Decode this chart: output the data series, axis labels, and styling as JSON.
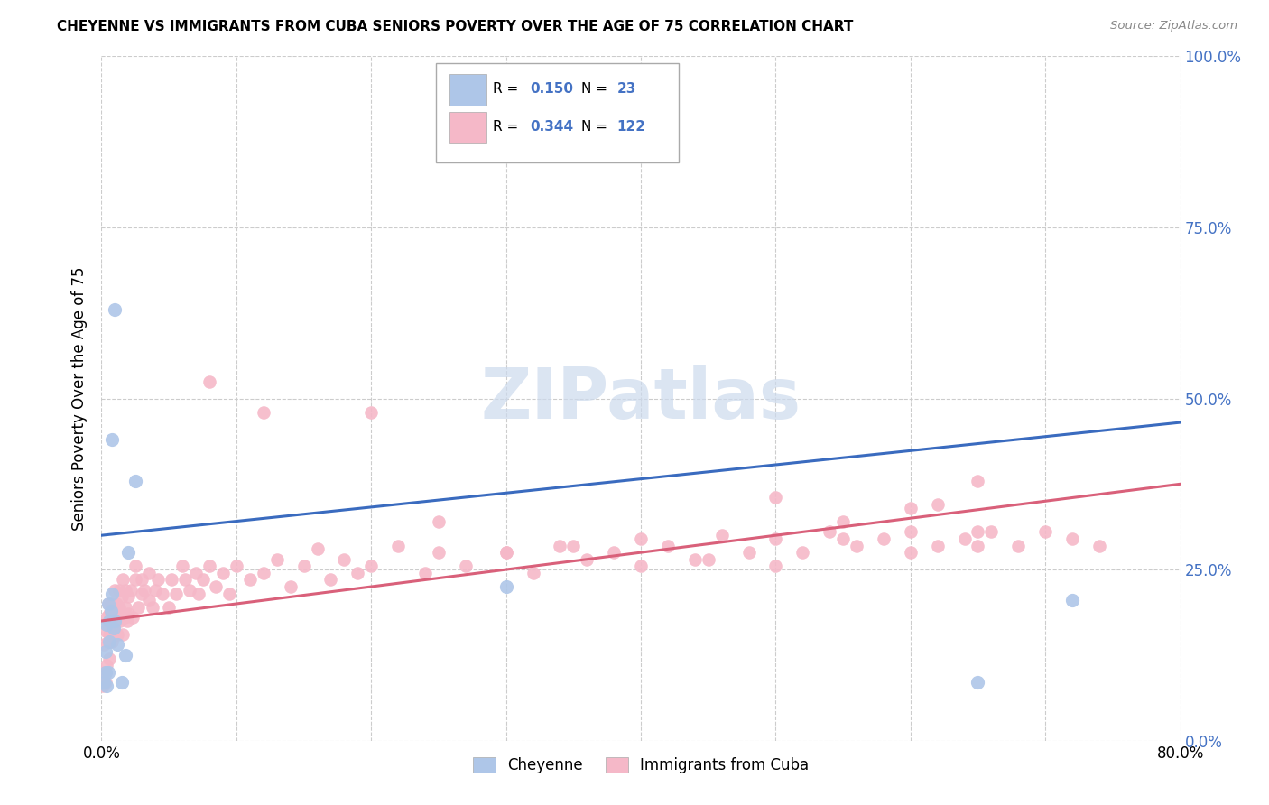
{
  "title": "CHEYENNE VS IMMIGRANTS FROM CUBA SENIORS POVERTY OVER THE AGE OF 75 CORRELATION CHART",
  "source": "Source: ZipAtlas.com",
  "ylabel": "Seniors Poverty Over the Age of 75",
  "cheyenne_R": "0.150",
  "cheyenne_N": "23",
  "cuba_R": "0.344",
  "cuba_N": "122",
  "cheyenne_color": "#aec6e8",
  "cuba_color": "#f5b8c8",
  "line_cheyenne_color": "#3a6bbf",
  "line_cuba_color": "#d9607a",
  "watermark_color": "#ccdaed",
  "cheyenne_x": [
    0.002,
    0.003,
    0.003,
    0.004,
    0.004,
    0.005,
    0.005,
    0.006,
    0.006,
    0.007,
    0.008,
    0.009,
    0.01,
    0.012,
    0.015,
    0.018,
    0.02,
    0.025,
    0.008,
    0.01,
    0.3,
    0.65,
    0.72
  ],
  "cheyenne_y": [
    0.085,
    0.1,
    0.13,
    0.08,
    0.17,
    0.1,
    0.2,
    0.175,
    0.145,
    0.19,
    0.215,
    0.165,
    0.175,
    0.14,
    0.085,
    0.125,
    0.275,
    0.38,
    0.44,
    0.63,
    0.225,
    0.085,
    0.205
  ],
  "cuba_x": [
    0.001,
    0.002,
    0.002,
    0.003,
    0.003,
    0.004,
    0.004,
    0.005,
    0.005,
    0.005,
    0.006,
    0.006,
    0.006,
    0.007,
    0.007,
    0.008,
    0.008,
    0.009,
    0.009,
    0.01,
    0.01,
    0.01,
    0.011,
    0.011,
    0.012,
    0.012,
    0.013,
    0.013,
    0.014,
    0.015,
    0.015,
    0.016,
    0.016,
    0.017,
    0.018,
    0.018,
    0.019,
    0.02,
    0.02,
    0.022,
    0.023,
    0.025,
    0.025,
    0.027,
    0.03,
    0.03,
    0.032,
    0.035,
    0.035,
    0.038,
    0.04,
    0.042,
    0.045,
    0.05,
    0.052,
    0.055,
    0.06,
    0.062,
    0.065,
    0.07,
    0.072,
    0.075,
    0.08,
    0.085,
    0.09,
    0.095,
    0.1,
    0.11,
    0.12,
    0.13,
    0.14,
    0.15,
    0.16,
    0.17,
    0.18,
    0.19,
    0.2,
    0.22,
    0.24,
    0.25,
    0.27,
    0.3,
    0.32,
    0.34,
    0.36,
    0.38,
    0.4,
    0.42,
    0.44,
    0.46,
    0.48,
    0.5,
    0.52,
    0.54,
    0.56,
    0.58,
    0.6,
    0.62,
    0.64,
    0.65,
    0.66,
    0.68,
    0.7,
    0.72,
    0.74,
    0.5,
    0.55,
    0.6,
    0.62,
    0.65,
    0.12,
    0.08,
    0.2,
    0.25,
    0.3,
    0.35,
    0.4,
    0.45,
    0.5,
    0.55,
    0.6,
    0.65
  ],
  "cuba_y": [
    0.08,
    0.1,
    0.14,
    0.085,
    0.16,
    0.18,
    0.11,
    0.145,
    0.17,
    0.2,
    0.12,
    0.185,
    0.155,
    0.16,
    0.2,
    0.145,
    0.18,
    0.165,
    0.2,
    0.155,
    0.185,
    0.22,
    0.175,
    0.2,
    0.18,
    0.155,
    0.195,
    0.22,
    0.175,
    0.21,
    0.185,
    0.155,
    0.235,
    0.18,
    0.195,
    0.22,
    0.175,
    0.21,
    0.185,
    0.22,
    0.18,
    0.235,
    0.255,
    0.195,
    0.215,
    0.235,
    0.22,
    0.205,
    0.245,
    0.195,
    0.22,
    0.235,
    0.215,
    0.195,
    0.235,
    0.215,
    0.255,
    0.235,
    0.22,
    0.245,
    0.215,
    0.235,
    0.255,
    0.225,
    0.245,
    0.215,
    0.255,
    0.235,
    0.245,
    0.265,
    0.225,
    0.255,
    0.28,
    0.235,
    0.265,
    0.245,
    0.255,
    0.285,
    0.245,
    0.275,
    0.255,
    0.275,
    0.245,
    0.285,
    0.265,
    0.275,
    0.255,
    0.285,
    0.265,
    0.3,
    0.275,
    0.295,
    0.275,
    0.305,
    0.285,
    0.295,
    0.305,
    0.285,
    0.295,
    0.285,
    0.305,
    0.285,
    0.305,
    0.295,
    0.285,
    0.355,
    0.32,
    0.34,
    0.345,
    0.38,
    0.48,
    0.525,
    0.48,
    0.32,
    0.275,
    0.285,
    0.295,
    0.265,
    0.255,
    0.295,
    0.275,
    0.305
  ],
  "chey_line_x0": 0.0,
  "chey_line_x1": 0.8,
  "chey_line_y0": 0.3,
  "chey_line_y1": 0.465,
  "cuba_line_x0": 0.0,
  "cuba_line_x1": 0.8,
  "cuba_line_y0": 0.175,
  "cuba_line_y1": 0.375,
  "xlim": [
    0,
    0.8
  ],
  "ylim": [
    0,
    1.0
  ],
  "xticks": [
    0.0,
    0.1,
    0.2,
    0.3,
    0.4,
    0.5,
    0.6,
    0.7,
    0.8
  ],
  "yticks": [
    0.0,
    0.25,
    0.5,
    0.75,
    1.0
  ],
  "right_yticklabels": [
    "0.0%",
    "25.0%",
    "50.0%",
    "75.0%",
    "100.0%"
  ]
}
